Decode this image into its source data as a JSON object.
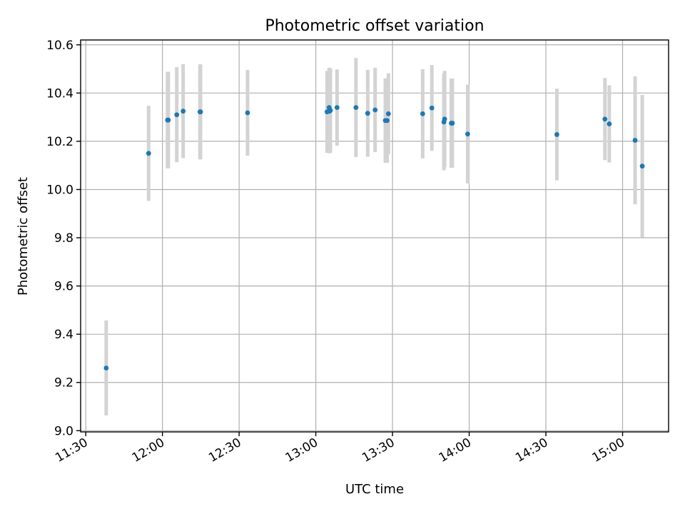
{
  "chart_data": {
    "type": "scatter",
    "title": "Photometric offset variation",
    "xlabel": "UTC time",
    "ylabel": "Photometric offset",
    "x_range_minutes": [
      688,
      918
    ],
    "ylim": [
      8.995,
      10.62
    ],
    "grid": true,
    "colors": {
      "point": "#1f77b4",
      "errorbar": "#d3d3d3"
    },
    "x_ticks": [
      {
        "label": "11:30",
        "minute": 690
      },
      {
        "label": "12:00",
        "minute": 720
      },
      {
        "label": "12:30",
        "minute": 750
      },
      {
        "label": "13:00",
        "minute": 780
      },
      {
        "label": "13:30",
        "minute": 810
      },
      {
        "label": "14:00",
        "minute": 840
      },
      {
        "label": "14:30",
        "minute": 870
      },
      {
        "label": "15:00",
        "minute": 900
      }
    ],
    "y_ticks": [
      {
        "label": "9.0",
        "value": 9.0
      },
      {
        "label": "9.2",
        "value": 9.2
      },
      {
        "label": "9.4",
        "value": 9.4
      },
      {
        "label": "9.6",
        "value": 9.6
      },
      {
        "label": "9.8",
        "value": 9.8
      },
      {
        "label": "10.0",
        "value": 10.0
      },
      {
        "label": "10.2",
        "value": 10.2
      },
      {
        "label": "10.4",
        "value": 10.4
      },
      {
        "label": "10.6",
        "value": 10.6
      }
    ],
    "points": [
      {
        "time": "11:38",
        "y": 9.26,
        "err": 0.197
      },
      {
        "time": "11:54.6",
        "y": 10.15,
        "err": 0.197
      },
      {
        "time": "12:02",
        "y": 10.288,
        "err": 0.2
      },
      {
        "time": "12:02.3",
        "y": 10.288,
        "err": 0.2
      },
      {
        "time": "12:05.6",
        "y": 10.31,
        "err": 0.197
      },
      {
        "time": "12:08.1",
        "y": 10.325,
        "err": 0.195
      },
      {
        "time": "12:14.7",
        "y": 10.322,
        "err": 0.197
      },
      {
        "time": "12:14.9",
        "y": 10.322,
        "err": 0.197
      },
      {
        "time": "12:33.3",
        "y": 10.318,
        "err": 0.178
      },
      {
        "time": "13:04.4",
        "y": 10.322,
        "err": 0.17
      },
      {
        "time": "13:05.2",
        "y": 10.34,
        "err": 0.165
      },
      {
        "time": "13:05.4",
        "y": 10.325,
        "err": 0.175
      },
      {
        "time": "13:05.7",
        "y": 10.328,
        "err": 0.175
      },
      {
        "time": "13:08.3",
        "y": 10.34,
        "err": 0.158
      },
      {
        "time": "13:15.7",
        "y": 10.34,
        "err": 0.205
      },
      {
        "time": "13:20.3",
        "y": 10.316,
        "err": 0.18
      },
      {
        "time": "13:23.2",
        "y": 10.33,
        "err": 0.175
      },
      {
        "time": "13:27.2",
        "y": 10.286,
        "err": 0.175
      },
      {
        "time": "13:27.9",
        "y": 10.286,
        "err": 0.175
      },
      {
        "time": "13:28.4",
        "y": 10.314,
        "err": 0.168
      },
      {
        "time": "13:41.8",
        "y": 10.314,
        "err": 0.185
      },
      {
        "time": "13:45.4",
        "y": 10.338,
        "err": 0.178
      },
      {
        "time": "13:50.1",
        "y": 10.28,
        "err": 0.2
      },
      {
        "time": "13:50.4",
        "y": 10.292,
        "err": 0.2
      },
      {
        "time": "13:53",
        "y": 10.275,
        "err": 0.185
      },
      {
        "time": "13:53.4",
        "y": 10.275,
        "err": 0.185
      },
      {
        "time": "13:59.4",
        "y": 10.23,
        "err": 0.205
      },
      {
        "time": "14:34.3",
        "y": 10.228,
        "err": 0.19
      },
      {
        "time": "14:53.1",
        "y": 10.292,
        "err": 0.17
      },
      {
        "time": "14:54.8",
        "y": 10.272,
        "err": 0.16
      },
      {
        "time": "15:04.9",
        "y": 10.204,
        "err": 0.265
      },
      {
        "time": "15:07.7",
        "y": 10.097,
        "err": 0.295
      }
    ]
  }
}
